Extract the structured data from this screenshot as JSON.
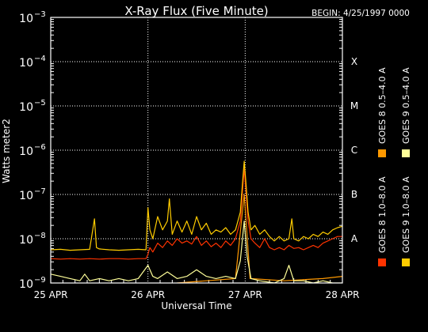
{
  "chart_data": {
    "type": "line",
    "title": "X-Ray Flux (Five Minute)",
    "begin_label": "BEGIN: 4/25/1997 0000",
    "ylabel": "Watts meter2",
    "xlabel": "Universal Time",
    "yscale": "log",
    "ylim": [
      1e-09,
      0.001
    ],
    "y_ticks": [
      {
        "exp": -9,
        "base": "10",
        "sup": "−9"
      },
      {
        "exp": -8,
        "base": "10",
        "sup": "−8"
      },
      {
        "exp": -7,
        "base": "10",
        "sup": "−7"
      },
      {
        "exp": -6,
        "base": "10",
        "sup": "−6"
      },
      {
        "exp": -5,
        "base": "10",
        "sup": "−5"
      },
      {
        "exp": -4,
        "base": "10",
        "sup": "−4"
      },
      {
        "exp": -3,
        "base": "10",
        "sup": "−3"
      }
    ],
    "x_ticks": [
      {
        "day": 0,
        "label": "25 APR"
      },
      {
        "day": 1,
        "label": "26 APR"
      },
      {
        "day": 2,
        "label": "27 APR"
      },
      {
        "day": 3,
        "label": "28 APR"
      }
    ],
    "xlim": [
      0,
      3
    ],
    "grid": true,
    "flare_classes": [
      {
        "label": "A",
        "exp": -8
      },
      {
        "label": "B",
        "exp": -7
      },
      {
        "label": "C",
        "exp": -6
      },
      {
        "label": "M",
        "exp": -5
      },
      {
        "label": "X",
        "exp": -4
      }
    ],
    "series": [
      {
        "name": "GOES 8 1.0–8.0 A",
        "color": "#ff3300",
        "points": [
          [
            0,
            -8.45
          ],
          [
            0.1,
            -8.46
          ],
          [
            0.2,
            -8.45
          ],
          [
            0.3,
            -8.46
          ],
          [
            0.4,
            -8.45
          ],
          [
            0.5,
            -8.46
          ],
          [
            0.6,
            -8.45
          ],
          [
            0.7,
            -8.45
          ],
          [
            0.8,
            -8.46
          ],
          [
            0.9,
            -8.45
          ],
          [
            0.98,
            -8.45
          ],
          [
            1.0,
            -8.35
          ],
          [
            1.02,
            -8.2
          ],
          [
            1.05,
            -8.3
          ],
          [
            1.1,
            -8.1
          ],
          [
            1.15,
            -8.2
          ],
          [
            1.2,
            -8.05
          ],
          [
            1.25,
            -8.15
          ],
          [
            1.3,
            -8.0
          ],
          [
            1.35,
            -8.1
          ],
          [
            1.4,
            -8.05
          ],
          [
            1.45,
            -8.12
          ],
          [
            1.5,
            -7.95
          ],
          [
            1.55,
            -8.15
          ],
          [
            1.6,
            -8.05
          ],
          [
            1.65,
            -8.18
          ],
          [
            1.7,
            -8.1
          ],
          [
            1.75,
            -8.2
          ],
          [
            1.8,
            -8.05
          ],
          [
            1.85,
            -8.15
          ],
          [
            1.9,
            -8.0
          ],
          [
            1.95,
            -7.6
          ],
          [
            1.97,
            -7.0
          ],
          [
            1.99,
            -6.4
          ],
          [
            2.01,
            -7.0
          ],
          [
            2.03,
            -7.6
          ],
          [
            2.06,
            -8.0
          ],
          [
            2.1,
            -8.1
          ],
          [
            2.15,
            -8.2
          ],
          [
            2.2,
            -8.0
          ],
          [
            2.25,
            -8.2
          ],
          [
            2.3,
            -8.25
          ],
          [
            2.35,
            -8.2
          ],
          [
            2.4,
            -8.25
          ],
          [
            2.45,
            -8.15
          ],
          [
            2.5,
            -8.22
          ],
          [
            2.55,
            -8.2
          ],
          [
            2.6,
            -8.25
          ],
          [
            2.65,
            -8.2
          ],
          [
            2.7,
            -8.15
          ],
          [
            2.75,
            -8.2
          ],
          [
            2.8,
            -8.1
          ],
          [
            2.85,
            -8.05
          ],
          [
            2.9,
            -8.0
          ],
          [
            2.95,
            -7.95
          ],
          [
            3.0,
            -7.95
          ]
        ]
      },
      {
        "name": "GOES 8 0.5–4.0 A",
        "color": "#ff9900",
        "points": [
          [
            0.5,
            -9.4
          ],
          [
            0.8,
            -9.2
          ],
          [
            1.0,
            -9.1
          ],
          [
            1.3,
            -9.0
          ],
          [
            1.6,
            -8.95
          ],
          [
            1.9,
            -8.9
          ],
          [
            1.99,
            -7.0
          ],
          [
            2.05,
            -8.9
          ],
          [
            2.4,
            -8.95
          ],
          [
            2.8,
            -8.9
          ],
          [
            3.0,
            -8.85
          ]
        ]
      },
      {
        "name": "GOES 9 1.0–8.0 A",
        "color": "#ffcc00",
        "points": [
          [
            0,
            -8.25
          ],
          [
            0.1,
            -8.24
          ],
          [
            0.2,
            -8.26
          ],
          [
            0.3,
            -8.25
          ],
          [
            0.4,
            -8.24
          ],
          [
            0.45,
            -7.55
          ],
          [
            0.47,
            -8.2
          ],
          [
            0.5,
            -8.23
          ],
          [
            0.6,
            -8.25
          ],
          [
            0.7,
            -8.26
          ],
          [
            0.8,
            -8.25
          ],
          [
            0.9,
            -8.24
          ],
          [
            0.98,
            -8.25
          ],
          [
            1.0,
            -7.3
          ],
          [
            1.02,
            -7.8
          ],
          [
            1.05,
            -8.0
          ],
          [
            1.1,
            -7.5
          ],
          [
            1.15,
            -7.8
          ],
          [
            1.2,
            -7.6
          ],
          [
            1.22,
            -7.1
          ],
          [
            1.25,
            -7.9
          ],
          [
            1.3,
            -7.6
          ],
          [
            1.35,
            -7.85
          ],
          [
            1.4,
            -7.6
          ],
          [
            1.45,
            -7.9
          ],
          [
            1.5,
            -7.5
          ],
          [
            1.55,
            -7.8
          ],
          [
            1.6,
            -7.65
          ],
          [
            1.65,
            -7.9
          ],
          [
            1.7,
            -7.8
          ],
          [
            1.75,
            -7.85
          ],
          [
            1.8,
            -7.75
          ],
          [
            1.85,
            -7.9
          ],
          [
            1.9,
            -7.8
          ],
          [
            1.95,
            -7.4
          ],
          [
            1.97,
            -6.8
          ],
          [
            1.99,
            -6.25
          ],
          [
            2.01,
            -6.8
          ],
          [
            2.03,
            -7.4
          ],
          [
            2.06,
            -7.8
          ],
          [
            2.1,
            -7.7
          ],
          [
            2.15,
            -7.9
          ],
          [
            2.2,
            -7.8
          ],
          [
            2.25,
            -7.95
          ],
          [
            2.3,
            -8.05
          ],
          [
            2.35,
            -7.95
          ],
          [
            2.4,
            -8.05
          ],
          [
            2.45,
            -8.0
          ],
          [
            2.48,
            -7.55
          ],
          [
            2.5,
            -8.0
          ],
          [
            2.55,
            -8.05
          ],
          [
            2.6,
            -7.95
          ],
          [
            2.65,
            -8.0
          ],
          [
            2.7,
            -7.9
          ],
          [
            2.75,
            -7.95
          ],
          [
            2.8,
            -7.85
          ],
          [
            2.85,
            -7.9
          ],
          [
            2.9,
            -7.8
          ],
          [
            2.95,
            -7.75
          ],
          [
            3.0,
            -7.72
          ]
        ]
      },
      {
        "name": "GOES 9 0.5–4.0 A",
        "color": "#ffff99",
        "points": [
          [
            0,
            -8.8
          ],
          [
            0.1,
            -8.85
          ],
          [
            0.2,
            -8.9
          ],
          [
            0.3,
            -8.95
          ],
          [
            0.35,
            -8.8
          ],
          [
            0.4,
            -8.95
          ],
          [
            0.5,
            -8.9
          ],
          [
            0.6,
            -8.95
          ],
          [
            0.7,
            -8.9
          ],
          [
            0.8,
            -8.95
          ],
          [
            0.9,
            -8.9
          ],
          [
            1.0,
            -8.6
          ],
          [
            1.05,
            -8.85
          ],
          [
            1.1,
            -8.9
          ],
          [
            1.2,
            -8.75
          ],
          [
            1.3,
            -8.9
          ],
          [
            1.4,
            -8.85
          ],
          [
            1.5,
            -8.7
          ],
          [
            1.6,
            -8.85
          ],
          [
            1.7,
            -8.9
          ],
          [
            1.8,
            -8.85
          ],
          [
            1.9,
            -8.9
          ],
          [
            1.95,
            -8.5
          ],
          [
            1.99,
            -7.6
          ],
          [
            2.02,
            -8.4
          ],
          [
            2.06,
            -8.9
          ],
          [
            2.15,
            -8.95
          ],
          [
            2.3,
            -9.0
          ],
          [
            2.4,
            -8.9
          ],
          [
            2.45,
            -8.6
          ],
          [
            2.5,
            -8.95
          ],
          [
            2.6,
            -8.95
          ],
          [
            2.7,
            -9.0
          ],
          [
            2.8,
            -8.95
          ],
          [
            2.9,
            -9.0
          ],
          [
            3.0,
            -9.0
          ]
        ]
      }
    ],
    "legend": [
      {
        "text": "GOES 8 1.0–8.0 A",
        "color": "#ff3300"
      },
      {
        "text": "GOES 9 1.0–8.0 A",
        "color": "#ffcc00"
      },
      {
        "text": "GOES 8 0.5–4.0 A",
        "color": "#ff9900"
      },
      {
        "text": "GOES 9 0.5–4.0 A",
        "color": "#ffff99"
      }
    ]
  }
}
